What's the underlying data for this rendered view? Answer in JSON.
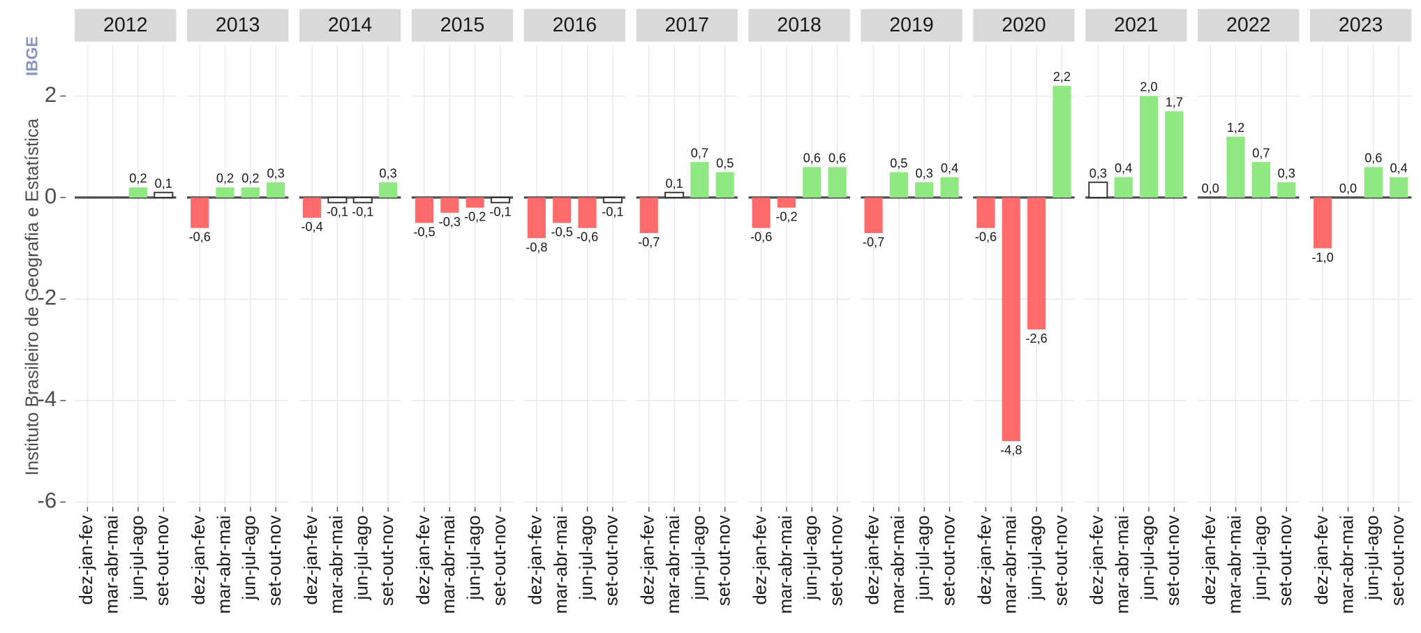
{
  "chart_data": {
    "type": "bar",
    "ylabel": "Instituto Brasileiro de Geografia e Estatística",
    "brand": "IBGE",
    "ylim": [
      -6.1,
      3.0
    ],
    "yticks": [
      -6,
      -4,
      -2,
      0,
      2
    ],
    "grid": true,
    "outline_color": "#333333",
    "categories": [
      "dez-jan-fev",
      "mar-abr-mai",
      "jun-jul-ago",
      "set-out-nov"
    ],
    "panels": [
      {
        "title": "2012",
        "values": [
          null,
          null,
          0.2,
          0.1
        ],
        "value_labels": [
          null,
          null,
          "0,2",
          "0,1"
        ],
        "colors": [
          null,
          null,
          "#90e882",
          "#ffffff"
        ]
      },
      {
        "title": "2013",
        "values": [
          -0.6,
          0.2,
          0.2,
          0.3
        ],
        "value_labels": [
          "-0,6",
          "0,2",
          "0,2",
          "0,3"
        ],
        "colors": [
          "#ff6b6b",
          "#90e882",
          "#90e882",
          "#90e882"
        ]
      },
      {
        "title": "2014",
        "values": [
          -0.4,
          -0.1,
          -0.1,
          0.3
        ],
        "value_labels": [
          "-0,4",
          "-0,1",
          "-0,1",
          "0,3"
        ],
        "colors": [
          "#ff6b6b",
          "#ffffff",
          "#ffffff",
          "#90e882"
        ]
      },
      {
        "title": "2015",
        "values": [
          -0.5,
          -0.3,
          -0.2,
          -0.1
        ],
        "value_labels": [
          "-0,5",
          "-0,3",
          "-0,2",
          "-0,1"
        ],
        "colors": [
          "#ff6b6b",
          "#ff6b6b",
          "#ff6b6b",
          "#ffffff"
        ]
      },
      {
        "title": "2016",
        "values": [
          -0.8,
          -0.5,
          -0.6,
          -0.1
        ],
        "value_labels": [
          "-0,8",
          "-0,5",
          "-0,6",
          "-0,1"
        ],
        "colors": [
          "#ff6b6b",
          "#ff6b6b",
          "#ff6b6b",
          "#ffffff"
        ]
      },
      {
        "title": "2017",
        "values": [
          -0.7,
          0.1,
          0.7,
          0.5
        ],
        "value_labels": [
          "-0,7",
          "0,1",
          "0,7",
          "0,5"
        ],
        "colors": [
          "#ff6b6b",
          "#ffffff",
          "#90e882",
          "#90e882"
        ]
      },
      {
        "title": "2018",
        "values": [
          -0.6,
          -0.2,
          0.6,
          0.6
        ],
        "value_labels": [
          "-0,6",
          "-0,2",
          "0,6",
          "0,6"
        ],
        "colors": [
          "#ff6b6b",
          "#ff6b6b",
          "#90e882",
          "#90e882"
        ]
      },
      {
        "title": "2019",
        "values": [
          -0.7,
          0.5,
          0.3,
          0.4
        ],
        "value_labels": [
          "-0,7",
          "0,5",
          "0,3",
          "0,4"
        ],
        "colors": [
          "#ff6b6b",
          "#90e882",
          "#90e882",
          "#90e882"
        ]
      },
      {
        "title": "2020",
        "values": [
          -0.6,
          -4.8,
          -2.6,
          2.2
        ],
        "value_labels": [
          "-0,6",
          "-4,8",
          "-2,6",
          "2,2"
        ],
        "colors": [
          "#ff6b6b",
          "#ff6b6b",
          "#ff6b6b",
          "#90e882"
        ]
      },
      {
        "title": "2021",
        "values": [
          0.3,
          0.4,
          2.0,
          1.7
        ],
        "value_labels": [
          "0,3",
          "0,4",
          "2,0",
          "1,7"
        ],
        "colors": [
          "#ffffff",
          "#90e882",
          "#90e882",
          "#90e882"
        ]
      },
      {
        "title": "2022",
        "values": [
          0.0,
          1.2,
          0.7,
          0.3
        ],
        "value_labels": [
          "0,0",
          "1,2",
          "0,7",
          "0,3"
        ],
        "colors": [
          "#90e882",
          "#90e882",
          "#90e882",
          "#90e882"
        ]
      },
      {
        "title": "2023",
        "values": [
          -1.0,
          0.0,
          0.6,
          0.4
        ],
        "value_labels": [
          "-1,0",
          "0,0",
          "0,6",
          "0,4"
        ],
        "colors": [
          "#ff6b6b",
          "#90e882",
          "#90e882",
          "#90e882"
        ]
      }
    ]
  }
}
